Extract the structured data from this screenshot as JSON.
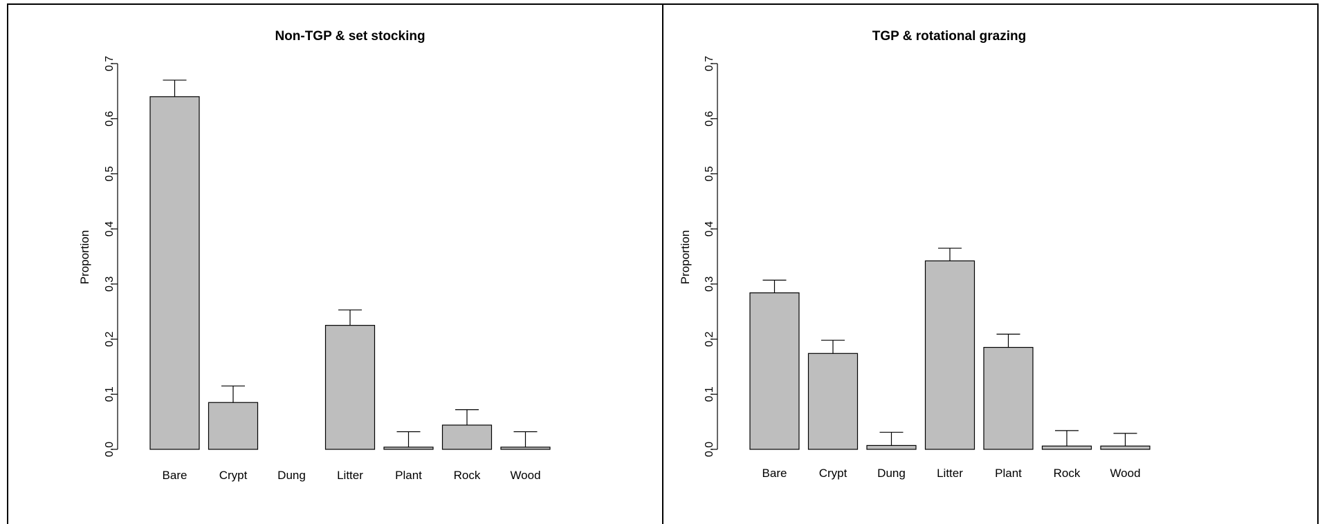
{
  "chart_data": [
    {
      "type": "bar",
      "title": "Non-TGP & set stocking",
      "xlabel": "",
      "ylabel": "Proportion",
      "ylim": [
        0,
        0.7
      ],
      "yticks": [
        "0.0",
        "0.1",
        "0.2",
        "0.3",
        "0.4",
        "0.5",
        "0.6",
        "0.7"
      ],
      "categories": [
        "Bare",
        "Crypt",
        "Dung",
        "Litter",
        "Plant",
        "Rock",
        "Wood"
      ],
      "values": [
        0.64,
        0.085,
        0.0,
        0.225,
        0.004,
        0.044,
        0.004
      ],
      "error_upper": [
        0.67,
        0.115,
        null,
        0.253,
        0.032,
        0.072,
        0.032
      ],
      "bar_color": "#bebebe",
      "grid": false
    },
    {
      "type": "bar",
      "title": "TGP & rotational grazing",
      "xlabel": "",
      "ylabel": "Proportion",
      "ylim": [
        0,
        0.7
      ],
      "yticks": [
        "0.0",
        "0.1",
        "0.2",
        "0.3",
        "0.4",
        "0.5",
        "0.6",
        "0.7"
      ],
      "categories": [
        "Bare",
        "Crypt",
        "Dung",
        "Litter",
        "Plant",
        "Rock",
        "Wood"
      ],
      "values": [
        0.284,
        0.174,
        0.007,
        0.342,
        0.185,
        0.006,
        0.006
      ],
      "error_upper": [
        0.307,
        0.198,
        0.031,
        0.365,
        0.209,
        0.034,
        0.029
      ],
      "bar_color": "#bebebe",
      "grid": false
    }
  ]
}
